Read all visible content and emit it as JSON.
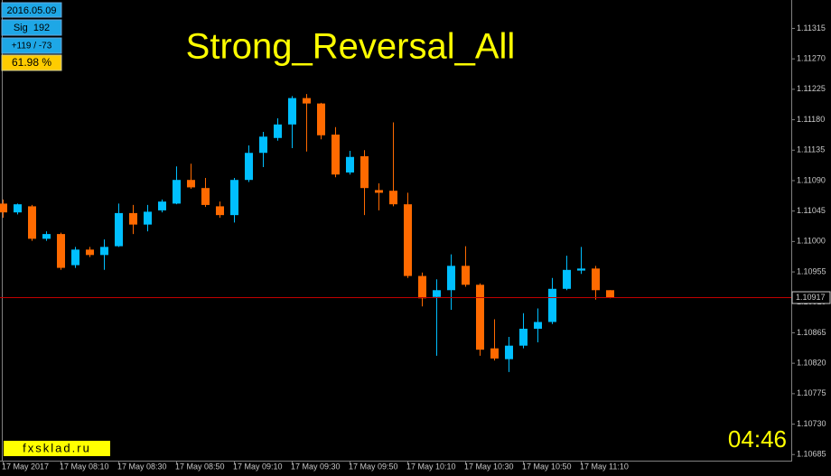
{
  "chart_data": {
    "type": "candlestick",
    "title": "Strong_Reversal_All",
    "categories": [
      "17 May 2017",
      null,
      null,
      null,
      "17 May 08:10",
      null,
      null,
      null,
      "17 May 08:30",
      null,
      null,
      null,
      "17 May 08:50",
      null,
      null,
      null,
      "17 May 09:10",
      null,
      null,
      null,
      "17 May 09:30",
      null,
      null,
      null,
      "17 May 09:50",
      null,
      null,
      null,
      "17 May 10:10",
      null,
      null,
      null,
      "17 May 10:30",
      null,
      null,
      null,
      "17 May 10:50",
      null,
      null,
      null,
      "17 May 11:10",
      null,
      null
    ],
    "open": [
      1.11056,
      1.11043,
      1.11052,
      1.11004,
      1.11011,
      1.10965,
      1.10988,
      1.1098,
      1.10993,
      1.11042,
      1.11025,
      1.11046,
      1.11056,
      1.11091,
      1.11079,
      1.11052,
      1.11039,
      1.11091,
      1.11131,
      1.11153,
      1.11173,
      1.11212,
      1.11204,
      1.11158,
      1.11102,
      1.11126,
      1.11076,
      1.11075,
      1.11055,
      1.10949,
      1.10918,
      1.10928,
      1.10964,
      1.10936,
      1.10842,
      1.10826,
      1.10846,
      1.10871,
      1.10881,
      1.1093,
      1.10957,
      1.1096,
      1.10928
    ],
    "high": [
      1.11062,
      1.11056,
      1.11054,
      1.11015,
      1.11013,
      1.10992,
      1.10992,
      1.11003,
      1.11056,
      1.11054,
      1.11054,
      1.11062,
      1.11111,
      1.11115,
      1.11094,
      1.11059,
      1.11094,
      1.11142,
      1.11162,
      1.11182,
      1.11215,
      1.11218,
      1.11205,
      1.11169,
      1.11134,
      1.11135,
      1.11086,
      1.11176,
      1.11072,
      1.10954,
      1.10944,
      1.10981,
      1.10993,
      1.10938,
      1.10885,
      1.10859,
      1.10894,
      1.10901,
      1.10946,
      1.10979,
      1.10992,
      1.10964,
      1.10928
    ],
    "low": [
      1.11035,
      1.1104,
      1.11001,
      1.11001,
      1.10958,
      1.10961,
      1.10977,
      1.10958,
      1.10992,
      1.11011,
      1.11015,
      1.11043,
      1.11055,
      1.11078,
      1.11051,
      1.11035,
      1.11028,
      1.11088,
      1.1111,
      1.11149,
      1.11138,
      1.11133,
      1.11151,
      1.11095,
      1.11099,
      1.11039,
      1.11046,
      1.11052,
      1.10946,
      1.10904,
      1.10831,
      1.10899,
      1.10933,
      1.10831,
      1.10824,
      1.10807,
      1.10842,
      1.10851,
      1.10878,
      1.10928,
      1.10952,
      1.10914,
      1.10916
    ],
    "close": [
      1.11043,
      1.11055,
      1.11004,
      1.11011,
      1.10961,
      1.10988,
      1.1098,
      1.10992,
      1.11042,
      1.11025,
      1.11044,
      1.11059,
      1.11091,
      1.1108,
      1.11054,
      1.11039,
      1.11091,
      1.11131,
      1.11155,
      1.11173,
      1.11212,
      1.11204,
      1.11157,
      1.11099,
      1.11125,
      1.11079,
      1.11072,
      1.11055,
      1.10949,
      1.10916,
      1.10928,
      1.10964,
      1.10936,
      1.1084,
      1.10827,
      1.10846,
      1.10871,
      1.10881,
      1.1093,
      1.10958,
      1.1096,
      1.10928,
      1.10917
    ],
    "up_color": "#00bfff",
    "down_color": "#ff6a00",
    "ylim": [
      1.10676,
      1.11357
    ],
    "yticks": [
      1.11315,
      {
        "value": 1.1127,
        "label": "1.11270"
      },
      1.11225,
      {
        "value": 1.1118,
        "label": "1.11180"
      },
      1.11135,
      {
        "value": 1.1109,
        "label": "1.11090"
      },
      1.11045,
      {
        "value": 1.11,
        "label": "1.11000"
      },
      1.10955,
      {
        "value": 1.1091,
        "label": "1.10910"
      },
      1.10865,
      {
        "value": 1.1082,
        "label": "1.10820"
      },
      1.10775,
      {
        "value": 1.1073,
        "label": "1.10730"
      },
      1.10685
    ],
    "price_line": {
      "value": 1.10917,
      "color": "#c00000"
    },
    "info_panel": {
      "date": "2016.05.09",
      "signals": "Sig  192",
      "stats": "+119 / -73",
      "rate": "61.98 %"
    },
    "watermark": "fxsklad.ru",
    "timer": "04:46"
  }
}
